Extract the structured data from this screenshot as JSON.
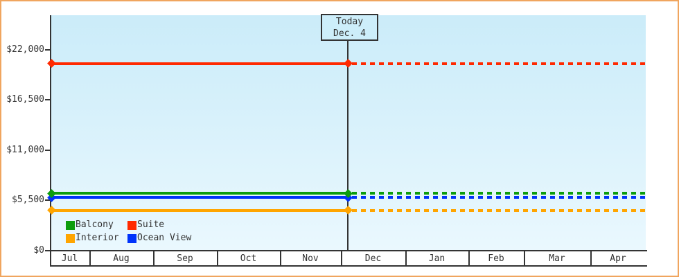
{
  "colors": {
    "frame_border": "#f0a55e",
    "axis": "#333333",
    "text": "#333333",
    "plot_bg_top": "#cbecf9",
    "plot_bg_bottom": "#eaf8fe",
    "today_box_bg": "#cdeefa"
  },
  "today_box": {
    "line1": "Today",
    "line2": "Dec. 4"
  },
  "chart_data": {
    "type": "line",
    "title": "",
    "xlabel": "",
    "ylabel": "",
    "x_axis": {
      "categories": [
        "Jul",
        "Aug",
        "Sep",
        "Oct",
        "Nov",
        "Dec",
        "Jan",
        "Feb",
        "Mar",
        "Apr"
      ]
    },
    "y_axis": {
      "tick_labels": [
        "$22,000",
        "$16,500",
        "$11,000",
        "$5,500",
        "$0"
      ],
      "tick_values": [
        22000,
        16500,
        11000,
        5500,
        0
      ],
      "ylim": [
        0,
        26000
      ],
      "grid": false
    },
    "today_annotation": {
      "label": "Today",
      "date": "Dec. 4"
    },
    "series": [
      {
        "name": "Interior",
        "color": "#ffa500",
        "price": 4400,
        "shape": "flat line, solid from chart start to today (Dec. 4), dashed projection to right edge"
      },
      {
        "name": "Ocean View",
        "color": "#0033fb",
        "price": 5800,
        "shape": "flat line, solid from chart start to today (Dec. 4), dashed projection to right edge"
      },
      {
        "name": "Balcony",
        "color": "#0d9d0d",
        "price": 6250,
        "shape": "flat line, solid from chart start to today (Dec. 4), dashed projection to right edge"
      },
      {
        "name": "Suite",
        "color": "#ff2900",
        "price": 20500,
        "shape": "flat line, solid from chart start to today (Dec. 4), dashed projection to right edge"
      }
    ],
    "legend": {
      "position": "bottom-left",
      "entries": [
        {
          "label": "Balcony",
          "color": "#0d9d0d"
        },
        {
          "label": "Suite",
          "color": "#ff2900"
        },
        {
          "label": "Interior",
          "color": "#ffa500"
        },
        {
          "label": "Ocean View",
          "color": "#0033fb"
        }
      ]
    }
  }
}
